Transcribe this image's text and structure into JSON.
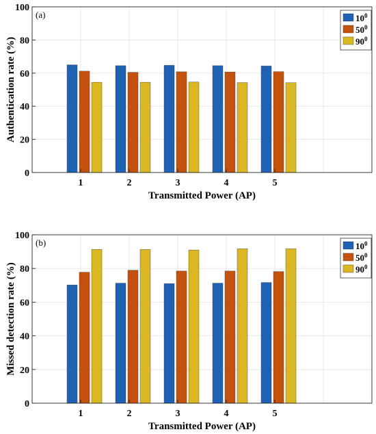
{
  "chart_data": [
    {
      "type": "bar",
      "panel_label": "(a)",
      "xlabel": "Transmitted Power (AP)",
      "ylabel": "Authentication rate (%)",
      "categories": [
        "1",
        "2",
        "3",
        "4",
        "5"
      ],
      "xlim": [
        0,
        7
      ],
      "ylim": [
        0,
        100
      ],
      "yticks": [
        "0",
        "20",
        "40",
        "60",
        "80",
        "100"
      ],
      "grid": true,
      "legend_position": "top-right",
      "series": [
        {
          "name": "10",
          "name_sup": "0",
          "color": "#1f62b4",
          "values": [
            65.0,
            64.5,
            64.7,
            64.5,
            64.3
          ]
        },
        {
          "name": "50",
          "name_sup": "0",
          "color": "#c4520e",
          "values": [
            61.2,
            60.5,
            60.8,
            60.7,
            60.9
          ]
        },
        {
          "name": "90",
          "name_sup": "0",
          "color": "#dbb723",
          "values": [
            54.5,
            54.5,
            54.6,
            54.3,
            54.2
          ]
        }
      ]
    },
    {
      "type": "bar",
      "panel_label": "(b)",
      "xlabel": "Transmitted Power (AP)",
      "ylabel": "Missed detection rate (%)",
      "categories": [
        "1",
        "2",
        "3",
        "4",
        "5"
      ],
      "xlim": [
        0,
        7
      ],
      "ylim": [
        0,
        100
      ],
      "yticks": [
        "0",
        "20",
        "40",
        "60",
        "80",
        "100"
      ],
      "grid": true,
      "legend_position": "top-right",
      "series": [
        {
          "name": "10",
          "name_sup": "0",
          "color": "#1f62b4",
          "values": [
            70.2,
            71.3,
            71.0,
            71.3,
            71.7
          ]
        },
        {
          "name": "50",
          "name_sup": "0",
          "color": "#c4520e",
          "values": [
            77.8,
            79.0,
            78.5,
            78.5,
            78.2
          ]
        },
        {
          "name": "90",
          "name_sup": "0",
          "color": "#dbb723",
          "values": [
            91.3,
            91.3,
            91.0,
            91.7,
            91.7
          ]
        }
      ]
    }
  ]
}
